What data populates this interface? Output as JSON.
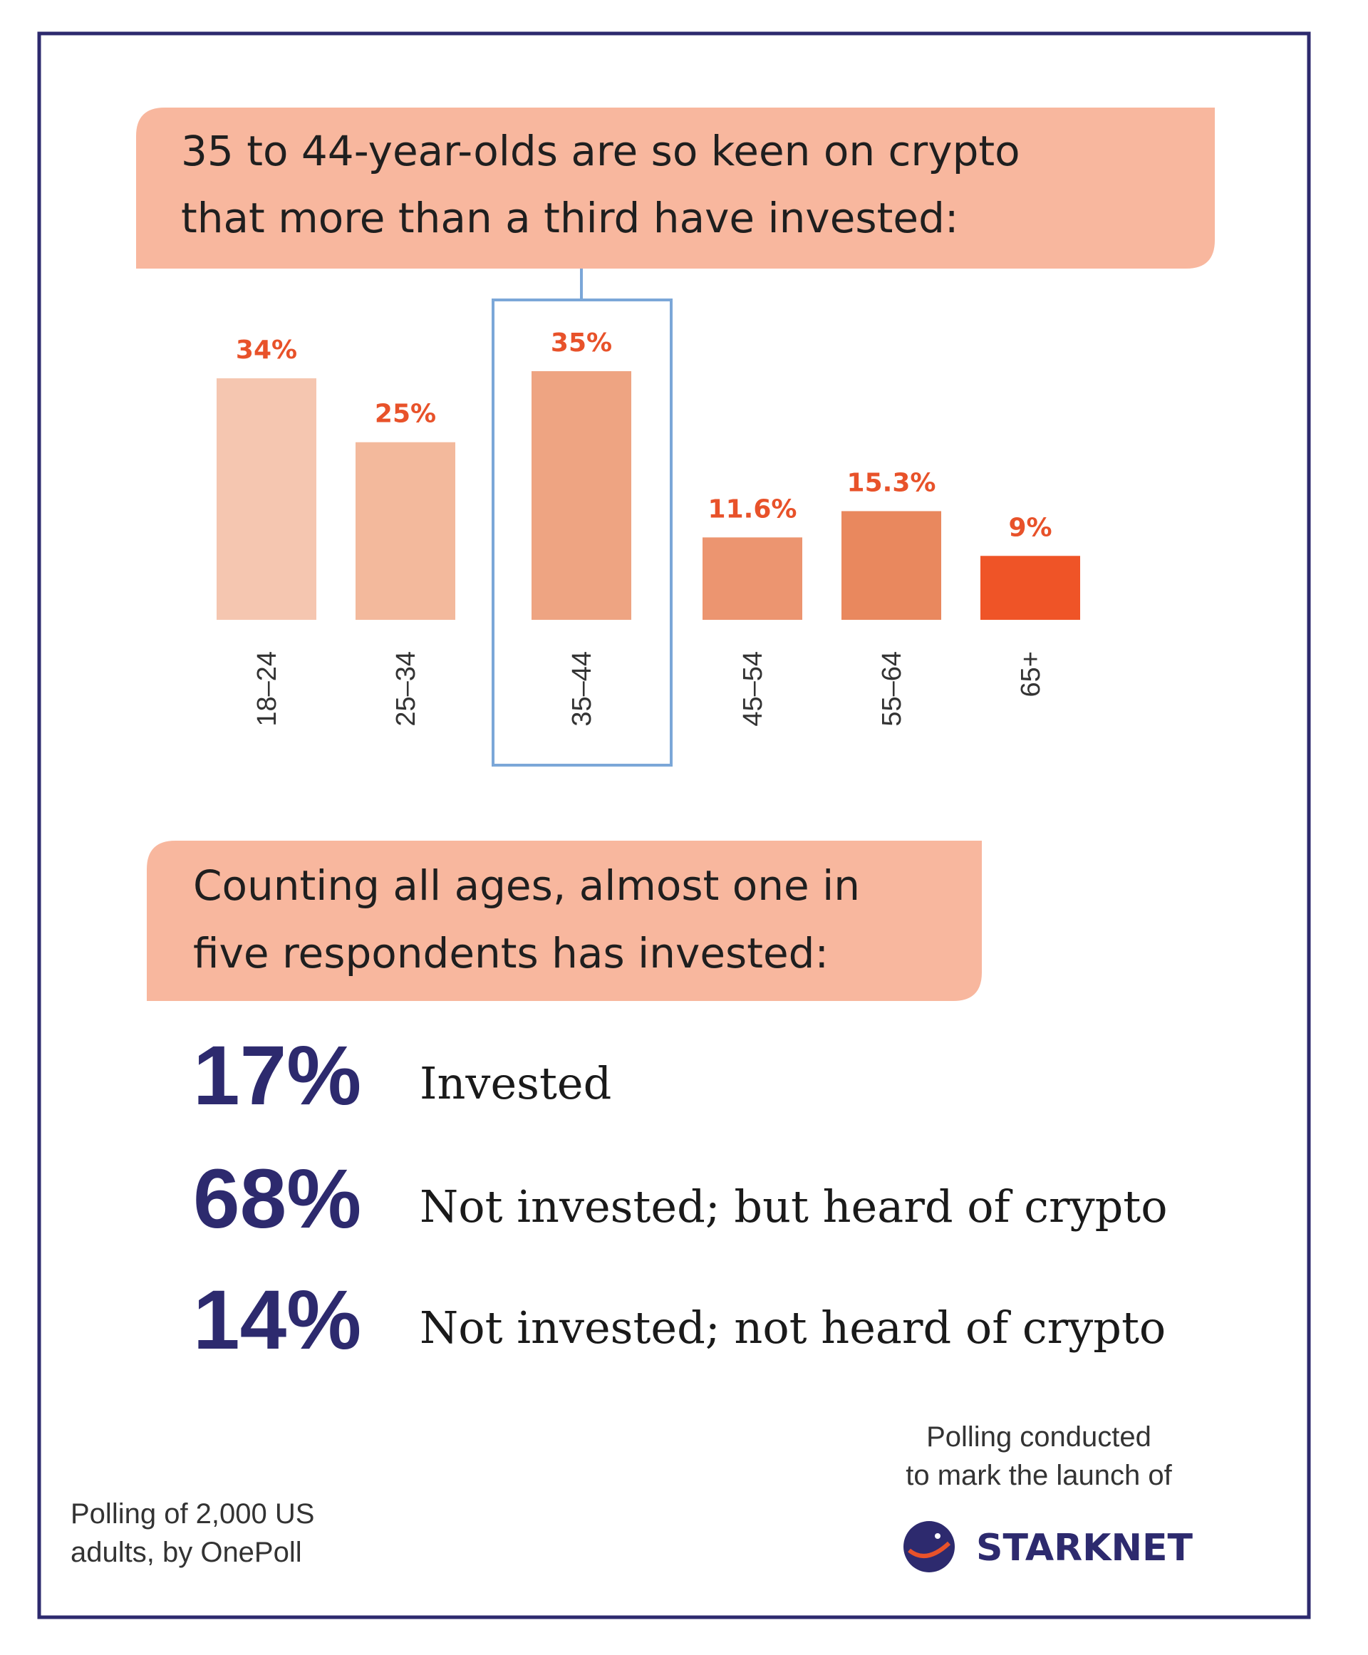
{
  "chart_data": {
    "type": "bar",
    "title": [
      "35 to 44-year-olds are so keen on crypto",
      "that more than a third have invested:"
    ],
    "categories": [
      "18–24",
      "25–34",
      "35–44",
      "45–54",
      "55–64",
      "65+"
    ],
    "values": [
      34,
      25,
      35,
      11.6,
      15.3,
      9
    ],
    "value_labels": [
      "34%",
      "25%",
      "35%",
      "11.6%",
      "15.3%",
      "9%"
    ],
    "colors": [
      "#f5c6b0",
      "#f3b99c",
      "#eea482",
      "#ec9570",
      "#e9885e",
      "#ef5427"
    ],
    "highlight": "35–44"
  },
  "summary": {
    "heading": [
      "Counting all ages, almost one in",
      "five respondents has invested:"
    ],
    "values": [
      17,
      68,
      14
    ],
    "value_labels": [
      "17%",
      "68%",
      "14%"
    ],
    "labels": [
      "Invested",
      "Not invested; but heard of crypto",
      "Not invested; not heard of crypto"
    ]
  },
  "footer": {
    "source": [
      "Polling of 2,000 US",
      "adults, by OnePoll"
    ],
    "note": [
      "Polling conducted",
      "to mark the launch of"
    ],
    "brand": "STARKNET"
  }
}
